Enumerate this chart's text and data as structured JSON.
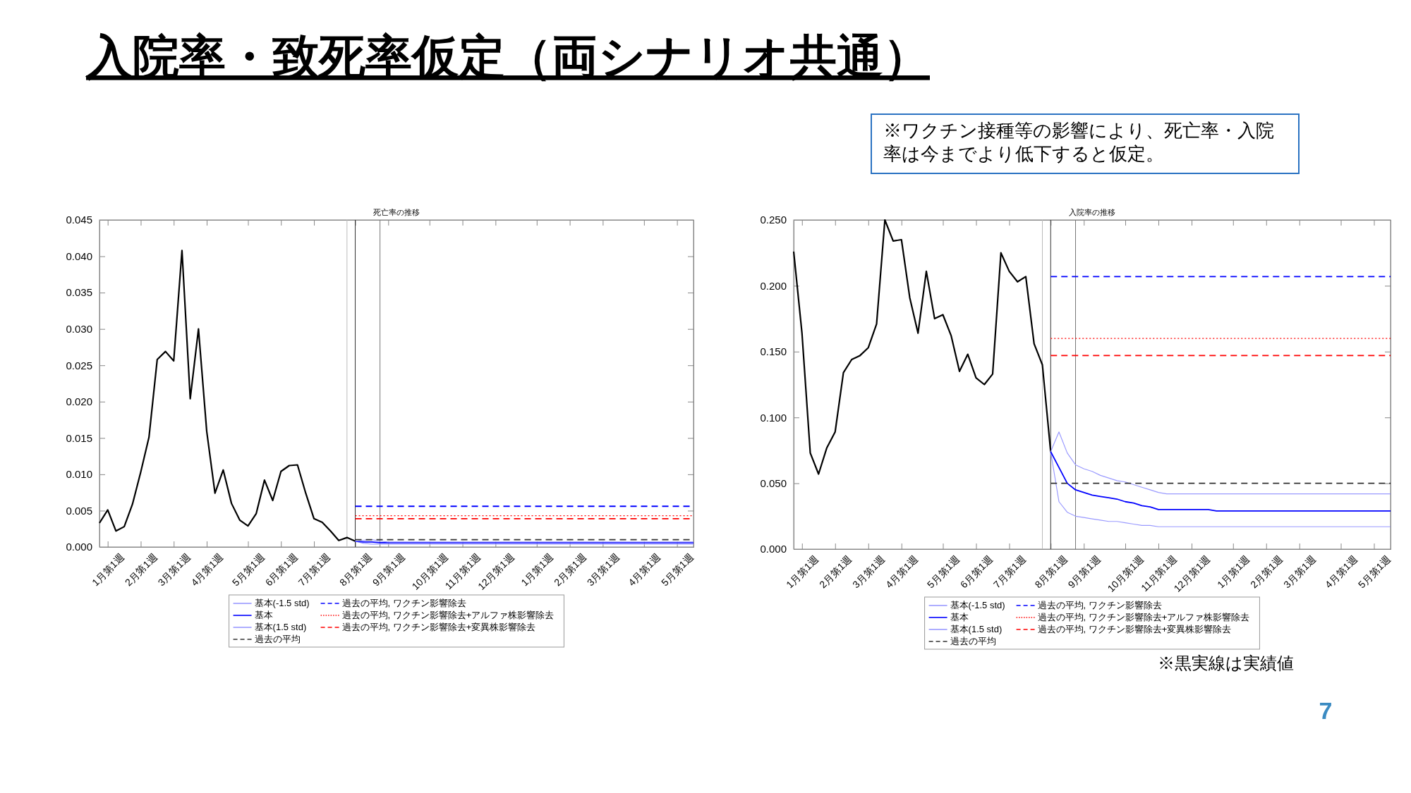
{
  "chart_data": [
    {
      "type": "other",
      "title": "入院率・致死率仮定（両シナリオ共通）",
      "annotations": [
        "※ワクチン接種等の影響により、死亡率・入院率は今までより低下すると仮定。",
        "7"
      ]
    },
    {
      "type": "line",
      "title": "死亡率の推移",
      "categories": [
        null,
        "1月第1週",
        null,
        null,
        null,
        "2月第1週",
        null,
        null,
        null,
        "3月第1週",
        null,
        null,
        null,
        "4月第1週",
        null,
        null,
        null,
        null,
        "5月第1週",
        null,
        null,
        null,
        "6月第1週",
        null,
        null,
        null,
        "7月第1週",
        null,
        null,
        null,
        null,
        "8月第1週",
        null,
        null,
        null,
        "9月第1週",
        null,
        null,
        null,
        null,
        "10月第1週",
        null,
        null,
        null,
        "11月第1週",
        null,
        null,
        null,
        "12月第1週",
        null,
        null,
        null,
        null,
        "1月第1週",
        null,
        null,
        null,
        "2月第1週",
        null,
        null,
        null,
        "3月第1週",
        null,
        null,
        null,
        null,
        "4月第1週",
        null,
        null,
        null,
        "5月第1週",
        null,
        null
      ],
      "ylim": [
        0,
        0.045
      ],
      "yticks": [
        {
          "value": 0,
          "label": "0.000"
        },
        {
          "value": 0.005,
          "label": "0.005"
        },
        {
          "value": 0.01,
          "label": "0.010"
        },
        {
          "value": 0.015,
          "label": "0.015"
        },
        {
          "value": 0.02,
          "label": "0.020"
        },
        {
          "value": 0.025,
          "label": "0.025"
        },
        {
          "value": 0.03,
          "label": "0.030"
        },
        {
          "value": 0.035,
          "label": "0.035"
        },
        {
          "value": 0.04,
          "label": "0.040"
        },
        {
          "value": 0.045,
          "label": "0.045"
        }
      ],
      "legend": "bottom",
      "ref_lines": [
        {
          "axis": "x",
          "value": "8月第1週",
          "color": "#333333"
        }
      ],
      "series": [
        {
          "color": "#000000",
          "line_style": "solid",
          "values": [
            0.0033,
            0.0051,
            0.0022,
            0.0028,
            0.0059,
            0.0103,
            0.0151,
            0.0258,
            0.0269,
            0.0256,
            0.0408,
            0.0204,
            0.03,
            0.0159,
            0.0074,
            0.0106,
            0.006,
            0.0037,
            0.0029,
            0.0046,
            0.0092,
            0.0064,
            0.0104,
            0.0112,
            0.0113,
            0.0074,
            0.0039,
            0.0034,
            0.0022,
            0.0009,
            0.0013,
            0.0008,
            null,
            null,
            null,
            null,
            null,
            null,
            null,
            null,
            null,
            null,
            null,
            null,
            null,
            null,
            null,
            null,
            null,
            null,
            null,
            null,
            null,
            null,
            null,
            null,
            null,
            null,
            null,
            null,
            null,
            null,
            null,
            null,
            null,
            null,
            null,
            null,
            null,
            null,
            null,
            null,
            null
          ]
        },
        {
          "name": "基本(-1.5 std)",
          "color": "#9a9aff",
          "line_style": "solid",
          "values": [
            null,
            null,
            null,
            null,
            null,
            null,
            null,
            null,
            null,
            null,
            null,
            null,
            null,
            null,
            null,
            null,
            null,
            null,
            null,
            null,
            null,
            null,
            null,
            null,
            null,
            null,
            null,
            null,
            null,
            null,
            null,
            0.0008,
            0.0005,
            0.0004,
            0.0004,
            0.0004,
            0.0004,
            0.0004,
            0.0004,
            0.0004,
            0.0004,
            0.0004,
            0.0004,
            0.0004,
            0.0004,
            0.0004,
            0.0004,
            0.0004,
            0.0004,
            0.0004,
            0.0004,
            0.0004,
            0.0004,
            0.0004,
            0.0004,
            0.0004,
            0.0004,
            0.0004,
            0.0004,
            0.0004,
            0.0004,
            0.0004,
            0.0004,
            0.0004,
            0.0004,
            0.0004,
            0.0004,
            0.0004,
            0.0004,
            0.0004,
            0.0004,
            0.0004,
            0.0004
          ]
        },
        {
          "name": "基本",
          "color": "#0000ff",
          "line_style": "solid",
          "values": [
            null,
            null,
            null,
            null,
            null,
            null,
            null,
            null,
            null,
            null,
            null,
            null,
            null,
            null,
            null,
            null,
            null,
            null,
            null,
            null,
            null,
            null,
            null,
            null,
            null,
            null,
            null,
            null,
            null,
            null,
            null,
            0.0008,
            0.0007,
            0.0007,
            0.0006,
            0.0006,
            0.0006,
            0.0006,
            0.0006,
            0.0006,
            0.0006,
            0.0006,
            0.0006,
            0.0006,
            0.0006,
            0.0006,
            0.0006,
            0.0006,
            0.0006,
            0.0006,
            0.0006,
            0.0006,
            0.0006,
            0.0006,
            0.0006,
            0.0006,
            0.0006,
            0.0006,
            0.0006,
            0.0006,
            0.0006,
            0.0006,
            0.0006,
            0.0006,
            0.0006,
            0.0006,
            0.0006,
            0.0006,
            0.0006,
            0.0006,
            0.0006,
            0.0006,
            0.0006
          ]
        },
        {
          "name": "基本(1.5 std)",
          "color": "#9a9aff",
          "line_style": "solid",
          "values": [
            null,
            null,
            null,
            null,
            null,
            null,
            null,
            null,
            null,
            null,
            null,
            null,
            null,
            null,
            null,
            null,
            null,
            null,
            null,
            null,
            null,
            null,
            null,
            null,
            null,
            null,
            null,
            null,
            null,
            null,
            null,
            0.0008,
            0.0009,
            0.001,
            0.0008,
            0.0007,
            0.0007,
            0.0007,
            0.0007,
            0.0007,
            0.0007,
            0.0007,
            0.0007,
            0.0007,
            0.0007,
            0.0007,
            0.0007,
            0.0007,
            0.0007,
            0.0007,
            0.0007,
            0.0007,
            0.0007,
            0.0007,
            0.0007,
            0.0007,
            0.0007,
            0.0007,
            0.0007,
            0.0007,
            0.0007,
            0.0007,
            0.0007,
            0.0007,
            0.0007,
            0.0007,
            0.0007,
            0.0007,
            0.0007,
            0.0007,
            0.0007,
            0.0007,
            0.0007
          ]
        },
        {
          "name": "過去の平均",
          "color": "#333333",
          "line_style": "dashed",
          "values": [
            null,
            null,
            null,
            null,
            null,
            null,
            null,
            null,
            null,
            null,
            null,
            null,
            null,
            null,
            null,
            null,
            null,
            null,
            null,
            null,
            null,
            null,
            null,
            null,
            null,
            null,
            null,
            null,
            null,
            null,
            null,
            0.001,
            0.001,
            0.001,
            0.001,
            0.001,
            0.001,
            0.001,
            0.001,
            0.001,
            0.001,
            0.001,
            0.001,
            0.001,
            0.001,
            0.001,
            0.001,
            0.001,
            0.001,
            0.001,
            0.001,
            0.001,
            0.001,
            0.001,
            0.001,
            0.001,
            0.001,
            0.001,
            0.001,
            0.001,
            0.001,
            0.001,
            0.001,
            0.001,
            0.001,
            0.001,
            0.001,
            0.001,
            0.001,
            0.001,
            0.001,
            0.001,
            0.001
          ]
        },
        {
          "name": "過去の平均, ワクチン影響除去",
          "color": "#0000ff",
          "line_style": "dashed",
          "values": [
            null,
            null,
            null,
            null,
            null,
            null,
            null,
            null,
            null,
            null,
            null,
            null,
            null,
            null,
            null,
            null,
            null,
            null,
            null,
            null,
            null,
            null,
            null,
            null,
            null,
            null,
            null,
            null,
            null,
            null,
            null,
            0.0056,
            0.0056,
            0.0056,
            0.0056,
            0.0056,
            0.0056,
            0.0056,
            0.0056,
            0.0056,
            0.0056,
            0.0056,
            0.0056,
            0.0056,
            0.0056,
            0.0056,
            0.0056,
            0.0056,
            0.0056,
            0.0056,
            0.0056,
            0.0056,
            0.0056,
            0.0056,
            0.0056,
            0.0056,
            0.0056,
            0.0056,
            0.0056,
            0.0056,
            0.0056,
            0.0056,
            0.0056,
            0.0056,
            0.0056,
            0.0056,
            0.0056,
            0.0056,
            0.0056,
            0.0056,
            0.0056,
            0.0056,
            0.0056
          ]
        },
        {
          "name": "過去の平均, ワクチン影響除去+アルファ株影響除去",
          "color": "#ff0000",
          "line_style": "dotted",
          "values": [
            null,
            null,
            null,
            null,
            null,
            null,
            null,
            null,
            null,
            null,
            null,
            null,
            null,
            null,
            null,
            null,
            null,
            null,
            null,
            null,
            null,
            null,
            null,
            null,
            null,
            null,
            null,
            null,
            null,
            null,
            null,
            0.0043,
            0.0043,
            0.0043,
            0.0043,
            0.0043,
            0.0043,
            0.0043,
            0.0043,
            0.0043,
            0.0043,
            0.0043,
            0.0043,
            0.0043,
            0.0043,
            0.0043,
            0.0043,
            0.0043,
            0.0043,
            0.0043,
            0.0043,
            0.0043,
            0.0043,
            0.0043,
            0.0043,
            0.0043,
            0.0043,
            0.0043,
            0.0043,
            0.0043,
            0.0043,
            0.0043,
            0.0043,
            0.0043,
            0.0043,
            0.0043,
            0.0043,
            0.0043,
            0.0043,
            0.0043,
            0.0043,
            0.0043,
            0.0043
          ]
        },
        {
          "name": "過去の平均, ワクチン影響除去+変異株影響除去",
          "color": "#ff0000",
          "line_style": "dashed",
          "values": [
            null,
            null,
            null,
            null,
            null,
            null,
            null,
            null,
            null,
            null,
            null,
            null,
            null,
            null,
            null,
            null,
            null,
            null,
            null,
            null,
            null,
            null,
            null,
            null,
            null,
            null,
            null,
            null,
            null,
            null,
            null,
            0.0039,
            0.0039,
            0.0039,
            0.0039,
            0.0039,
            0.0039,
            0.0039,
            0.0039,
            0.0039,
            0.0039,
            0.0039,
            0.0039,
            0.0039,
            0.0039,
            0.0039,
            0.0039,
            0.0039,
            0.0039,
            0.0039,
            0.0039,
            0.0039,
            0.0039,
            0.0039,
            0.0039,
            0.0039,
            0.0039,
            0.0039,
            0.0039,
            0.0039,
            0.0039,
            0.0039,
            0.0039,
            0.0039,
            0.0039,
            0.0039,
            0.0039,
            0.0039,
            0.0039,
            0.0039,
            0.0039,
            0.0039,
            0.0039
          ]
        }
      ]
    },
    {
      "type": "line",
      "title": "入院率の推移",
      "categories": [
        null,
        "1月第1週",
        null,
        null,
        null,
        "2月第1週",
        null,
        null,
        null,
        "3月第1週",
        null,
        null,
        null,
        "4月第1週",
        null,
        null,
        null,
        null,
        "5月第1週",
        null,
        null,
        null,
        "6月第1週",
        null,
        null,
        null,
        "7月第1週",
        null,
        null,
        null,
        null,
        "8月第1週",
        null,
        null,
        null,
        "9月第1週",
        null,
        null,
        null,
        null,
        "10月第1週",
        null,
        null,
        null,
        "11月第1週",
        null,
        null,
        null,
        "12月第1週",
        null,
        null,
        null,
        null,
        "1月第1週",
        null,
        null,
        null,
        "2月第1週",
        null,
        null,
        null,
        "3月第1週",
        null,
        null,
        null,
        null,
        "4月第1週",
        null,
        null,
        null,
        "5月第1週",
        null,
        null
      ],
      "ylim": [
        0,
        0.25
      ],
      "yticks": [
        {
          "value": 0,
          "label": "0.000"
        },
        {
          "value": 0.05,
          "label": "0.050"
        },
        {
          "value": 0.1,
          "label": "0.100"
        },
        {
          "value": 0.15,
          "label": "0.150"
        },
        {
          "value": 0.2,
          "label": "0.200"
        },
        {
          "value": 0.25,
          "label": "0.250"
        }
      ],
      "legend": "bottom",
      "annotations": [
        "※黒実線は実績値"
      ],
      "ref_lines": [
        {
          "axis": "x",
          "value": "8月第1週",
          "color": "#333333"
        }
      ],
      "series": [
        {
          "color": "#000000",
          "line_style": "solid",
          "values": [
            0.226,
            0.164,
            0.073,
            0.057,
            0.077,
            0.089,
            0.134,
            0.144,
            0.147,
            0.153,
            0.171,
            0.25,
            0.234,
            0.235,
            0.191,
            0.164,
            0.211,
            0.175,
            0.178,
            0.162,
            0.135,
            0.148,
            0.13,
            0.125,
            0.133,
            0.225,
            0.211,
            0.203,
            0.207,
            0.156,
            0.14,
            0.074,
            null,
            null,
            null,
            null,
            null,
            null,
            null,
            null,
            null,
            null,
            null,
            null,
            null,
            null,
            null,
            null,
            null,
            null,
            null,
            null,
            null,
            null,
            null,
            null,
            null,
            null,
            null,
            null,
            null,
            null,
            null,
            null,
            null,
            null,
            null,
            null,
            null,
            null,
            null,
            null,
            null
          ]
        },
        {
          "name": "基本(-1.5 std)",
          "color": "#9a9aff",
          "line_style": "solid",
          "values": [
            null,
            null,
            null,
            null,
            null,
            null,
            null,
            null,
            null,
            null,
            null,
            null,
            null,
            null,
            null,
            null,
            null,
            null,
            null,
            null,
            null,
            null,
            null,
            null,
            null,
            null,
            null,
            null,
            null,
            null,
            null,
            0.074,
            0.036,
            0.028,
            0.025,
            0.024,
            0.023,
            0.022,
            0.021,
            0.021,
            0.02,
            0.019,
            0.018,
            0.018,
            0.017,
            0.017,
            0.017,
            0.017,
            0.017,
            0.017,
            0.017,
            0.017,
            0.017,
            0.017,
            0.017,
            0.017,
            0.017,
            0.017,
            0.017,
            0.017,
            0.017,
            0.017,
            0.017,
            0.017,
            0.017,
            0.017,
            0.017,
            0.017,
            0.017,
            0.017,
            0.017,
            0.017,
            0.017
          ]
        },
        {
          "name": "基本",
          "color": "#0000ff",
          "line_style": "solid",
          "values": [
            null,
            null,
            null,
            null,
            null,
            null,
            null,
            null,
            null,
            null,
            null,
            null,
            null,
            null,
            null,
            null,
            null,
            null,
            null,
            null,
            null,
            null,
            null,
            null,
            null,
            null,
            null,
            null,
            null,
            null,
            null,
            0.074,
            0.062,
            0.05,
            0.045,
            0.043,
            0.041,
            0.04,
            0.039,
            0.038,
            0.036,
            0.035,
            0.033,
            0.032,
            0.03,
            0.03,
            0.03,
            0.03,
            0.03,
            0.03,
            0.03,
            0.029,
            0.029,
            0.029,
            0.029,
            0.029,
            0.029,
            0.029,
            0.029,
            0.029,
            0.029,
            0.029,
            0.029,
            0.029,
            0.029,
            0.029,
            0.029,
            0.029,
            0.029,
            0.029,
            0.029,
            0.029,
            0.029
          ]
        },
        {
          "name": "基本(1.5 std)",
          "color": "#9a9aff",
          "line_style": "solid",
          "values": [
            null,
            null,
            null,
            null,
            null,
            null,
            null,
            null,
            null,
            null,
            null,
            null,
            null,
            null,
            null,
            null,
            null,
            null,
            null,
            null,
            null,
            null,
            null,
            null,
            null,
            null,
            null,
            null,
            null,
            null,
            null,
            0.074,
            0.089,
            0.073,
            0.064,
            0.061,
            0.059,
            0.056,
            0.054,
            0.052,
            0.051,
            0.049,
            0.047,
            0.045,
            0.043,
            0.042,
            0.042,
            0.042,
            0.042,
            0.042,
            0.042,
            0.042,
            0.042,
            0.042,
            0.042,
            0.042,
            0.042,
            0.042,
            0.042,
            0.042,
            0.042,
            0.042,
            0.042,
            0.042,
            0.042,
            0.042,
            0.042,
            0.042,
            0.042,
            0.042,
            0.042,
            0.042,
            0.042
          ]
        },
        {
          "name": "過去の平均",
          "color": "#333333",
          "line_style": "dashed",
          "values": [
            null,
            null,
            null,
            null,
            null,
            null,
            null,
            null,
            null,
            null,
            null,
            null,
            null,
            null,
            null,
            null,
            null,
            null,
            null,
            null,
            null,
            null,
            null,
            null,
            null,
            null,
            null,
            null,
            null,
            null,
            null,
            0.05,
            0.05,
            0.05,
            0.05,
            0.05,
            0.05,
            0.05,
            0.05,
            0.05,
            0.05,
            0.05,
            0.05,
            0.05,
            0.05,
            0.05,
            0.05,
            0.05,
            0.05,
            0.05,
            0.05,
            0.05,
            0.05,
            0.05,
            0.05,
            0.05,
            0.05,
            0.05,
            0.05,
            0.05,
            0.05,
            0.05,
            0.05,
            0.05,
            0.05,
            0.05,
            0.05,
            0.05,
            0.05,
            0.05,
            0.05,
            0.05,
            0.05
          ]
        },
        {
          "name": "過去の平均, ワクチン影響除去",
          "color": "#0000ff",
          "line_style": "dashed",
          "values": [
            null,
            null,
            null,
            null,
            null,
            null,
            null,
            null,
            null,
            null,
            null,
            null,
            null,
            null,
            null,
            null,
            null,
            null,
            null,
            null,
            null,
            null,
            null,
            null,
            null,
            null,
            null,
            null,
            null,
            null,
            null,
            0.207,
            0.207,
            0.207,
            0.207,
            0.207,
            0.207,
            0.207,
            0.207,
            0.207,
            0.207,
            0.207,
            0.207,
            0.207,
            0.207,
            0.207,
            0.207,
            0.207,
            0.207,
            0.207,
            0.207,
            0.207,
            0.207,
            0.207,
            0.207,
            0.207,
            0.207,
            0.207,
            0.207,
            0.207,
            0.207,
            0.207,
            0.207,
            0.207,
            0.207,
            0.207,
            0.207,
            0.207,
            0.207,
            0.207,
            0.207,
            0.207,
            0.207
          ]
        },
        {
          "name": "過去の平均, ワクチン影響除去+アルファ株影響除去",
          "color": "#ff0000",
          "line_style": "dotted",
          "values": [
            null,
            null,
            null,
            null,
            null,
            null,
            null,
            null,
            null,
            null,
            null,
            null,
            null,
            null,
            null,
            null,
            null,
            null,
            null,
            null,
            null,
            null,
            null,
            null,
            null,
            null,
            null,
            null,
            null,
            null,
            null,
            0.16,
            0.16,
            0.16,
            0.16,
            0.16,
            0.16,
            0.16,
            0.16,
            0.16,
            0.16,
            0.16,
            0.16,
            0.16,
            0.16,
            0.16,
            0.16,
            0.16,
            0.16,
            0.16,
            0.16,
            0.16,
            0.16,
            0.16,
            0.16,
            0.16,
            0.16,
            0.16,
            0.16,
            0.16,
            0.16,
            0.16,
            0.16,
            0.16,
            0.16,
            0.16,
            0.16,
            0.16,
            0.16,
            0.16,
            0.16,
            0.16,
            0.16
          ]
        },
        {
          "name": "過去の平均, ワクチン影響除去+変異株影響除去",
          "color": "#ff0000",
          "line_style": "dashed",
          "values": [
            null,
            null,
            null,
            null,
            null,
            null,
            null,
            null,
            null,
            null,
            null,
            null,
            null,
            null,
            null,
            null,
            null,
            null,
            null,
            null,
            null,
            null,
            null,
            null,
            null,
            null,
            null,
            null,
            null,
            null,
            null,
            0.147,
            0.147,
            0.147,
            0.147,
            0.147,
            0.147,
            0.147,
            0.147,
            0.147,
            0.147,
            0.147,
            0.147,
            0.147,
            0.147,
            0.147,
            0.147,
            0.147,
            0.147,
            0.147,
            0.147,
            0.147,
            0.147,
            0.147,
            0.147,
            0.147,
            0.147,
            0.147,
            0.147,
            0.147,
            0.147,
            0.147,
            0.147,
            0.147,
            0.147,
            0.147,
            0.147,
            0.147,
            0.147,
            0.147,
            0.147,
            0.147,
            0.147
          ]
        }
      ]
    }
  ]
}
